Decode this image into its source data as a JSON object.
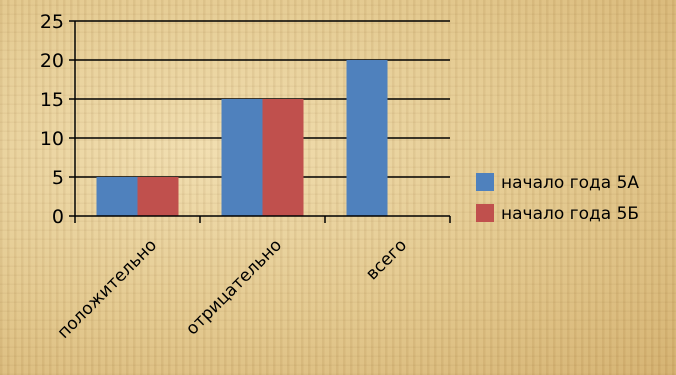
{
  "chart_data": {
    "type": "bar",
    "title": "",
    "xlabel": "",
    "ylabel": "",
    "categories": [
      "положительно",
      "отрицательно",
      "всего"
    ],
    "series": [
      {
        "name": "начало года 5А",
        "color": "#4f81bd",
        "values": [
          5,
          15,
          20
        ]
      },
      {
        "name": "начало года 5Б",
        "color": "#c0504d",
        "values": [
          5,
          15,
          null
        ]
      }
    ],
    "yticks": [
      0,
      5,
      10,
      15,
      20,
      25
    ],
    "ylim": [
      0,
      25
    ],
    "grid": true,
    "legend_position": "right"
  }
}
